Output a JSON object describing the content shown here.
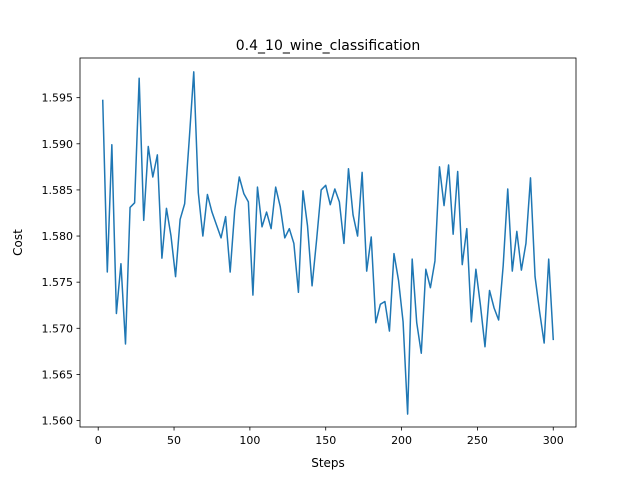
{
  "chart_data": {
    "type": "line",
    "title": "0.4_10_wine_classification",
    "xlabel": "Steps",
    "ylabel": "Cost",
    "xlim": [
      -12,
      315
    ],
    "ylim": [
      1.5593,
      1.5993
    ],
    "xticks": [
      0,
      50,
      100,
      150,
      200,
      250,
      300
    ],
    "yticks": [
      1.56,
      1.565,
      1.57,
      1.575,
      1.58,
      1.585,
      1.59,
      1.595
    ],
    "grid": false,
    "series": [
      {
        "color": "#1f77b4",
        "x": [
          3,
          6,
          9,
          12,
          15,
          18,
          21,
          24,
          27,
          30,
          33,
          36,
          39,
          42,
          45,
          48,
          51,
          54,
          57,
          60,
          63,
          66,
          69,
          72,
          75,
          78,
          81,
          84,
          87,
          90,
          93,
          96,
          99,
          102,
          105,
          108,
          111,
          114,
          117,
          120,
          123,
          126,
          129,
          132,
          135,
          138,
          141,
          144,
          147,
          150,
          153,
          156,
          159,
          162,
          165,
          168,
          171,
          174,
          177,
          180,
          183,
          186,
          189,
          192,
          195,
          198,
          201,
          204,
          207,
          210,
          213,
          216,
          219,
          222,
          225,
          228,
          231,
          234,
          237,
          240,
          243,
          246,
          249,
          252,
          255,
          258,
          261,
          264,
          267,
          270,
          273,
          276,
          279,
          282,
          285,
          288,
          291,
          294,
          297,
          300
        ],
        "y": [
          1.5947,
          1.5761,
          1.5899,
          1.5716,
          1.577,
          1.5683,
          1.5831,
          1.5836,
          1.5971,
          1.5817,
          1.5897,
          1.5864,
          1.5888,
          1.5776,
          1.583,
          1.58,
          1.5756,
          1.5818,
          1.5835,
          1.5904,
          1.5978,
          1.5847,
          1.58,
          1.5845,
          1.5826,
          1.5812,
          1.5798,
          1.5821,
          1.5761,
          1.5828,
          1.5864,
          1.5846,
          1.5837,
          1.5736,
          1.5853,
          1.581,
          1.5826,
          1.5808,
          1.5853,
          1.5832,
          1.5798,
          1.5808,
          1.5792,
          1.5739,
          1.5849,
          1.5811,
          1.5746,
          1.5796,
          1.585,
          1.5855,
          1.5834,
          1.5851,
          1.5837,
          1.5792,
          1.5873,
          1.5823,
          1.58,
          1.5869,
          1.5762,
          1.5799,
          1.5706,
          1.5726,
          1.5729,
          1.5697,
          1.5781,
          1.5752,
          1.5707,
          1.5607,
          1.5775,
          1.5706,
          1.5673,
          1.5764,
          1.5744,
          1.5773,
          1.5875,
          1.5833,
          1.5877,
          1.5802,
          1.587,
          1.5769,
          1.5808,
          1.5707,
          1.5764,
          1.5725,
          1.568,
          1.5741,
          1.5722,
          1.5709,
          1.5768,
          1.5851,
          1.5762,
          1.5805,
          1.5763,
          1.5792,
          1.5863,
          1.5756,
          1.5718,
          1.5684,
          1.5775,
          1.5688
        ]
      }
    ]
  }
}
